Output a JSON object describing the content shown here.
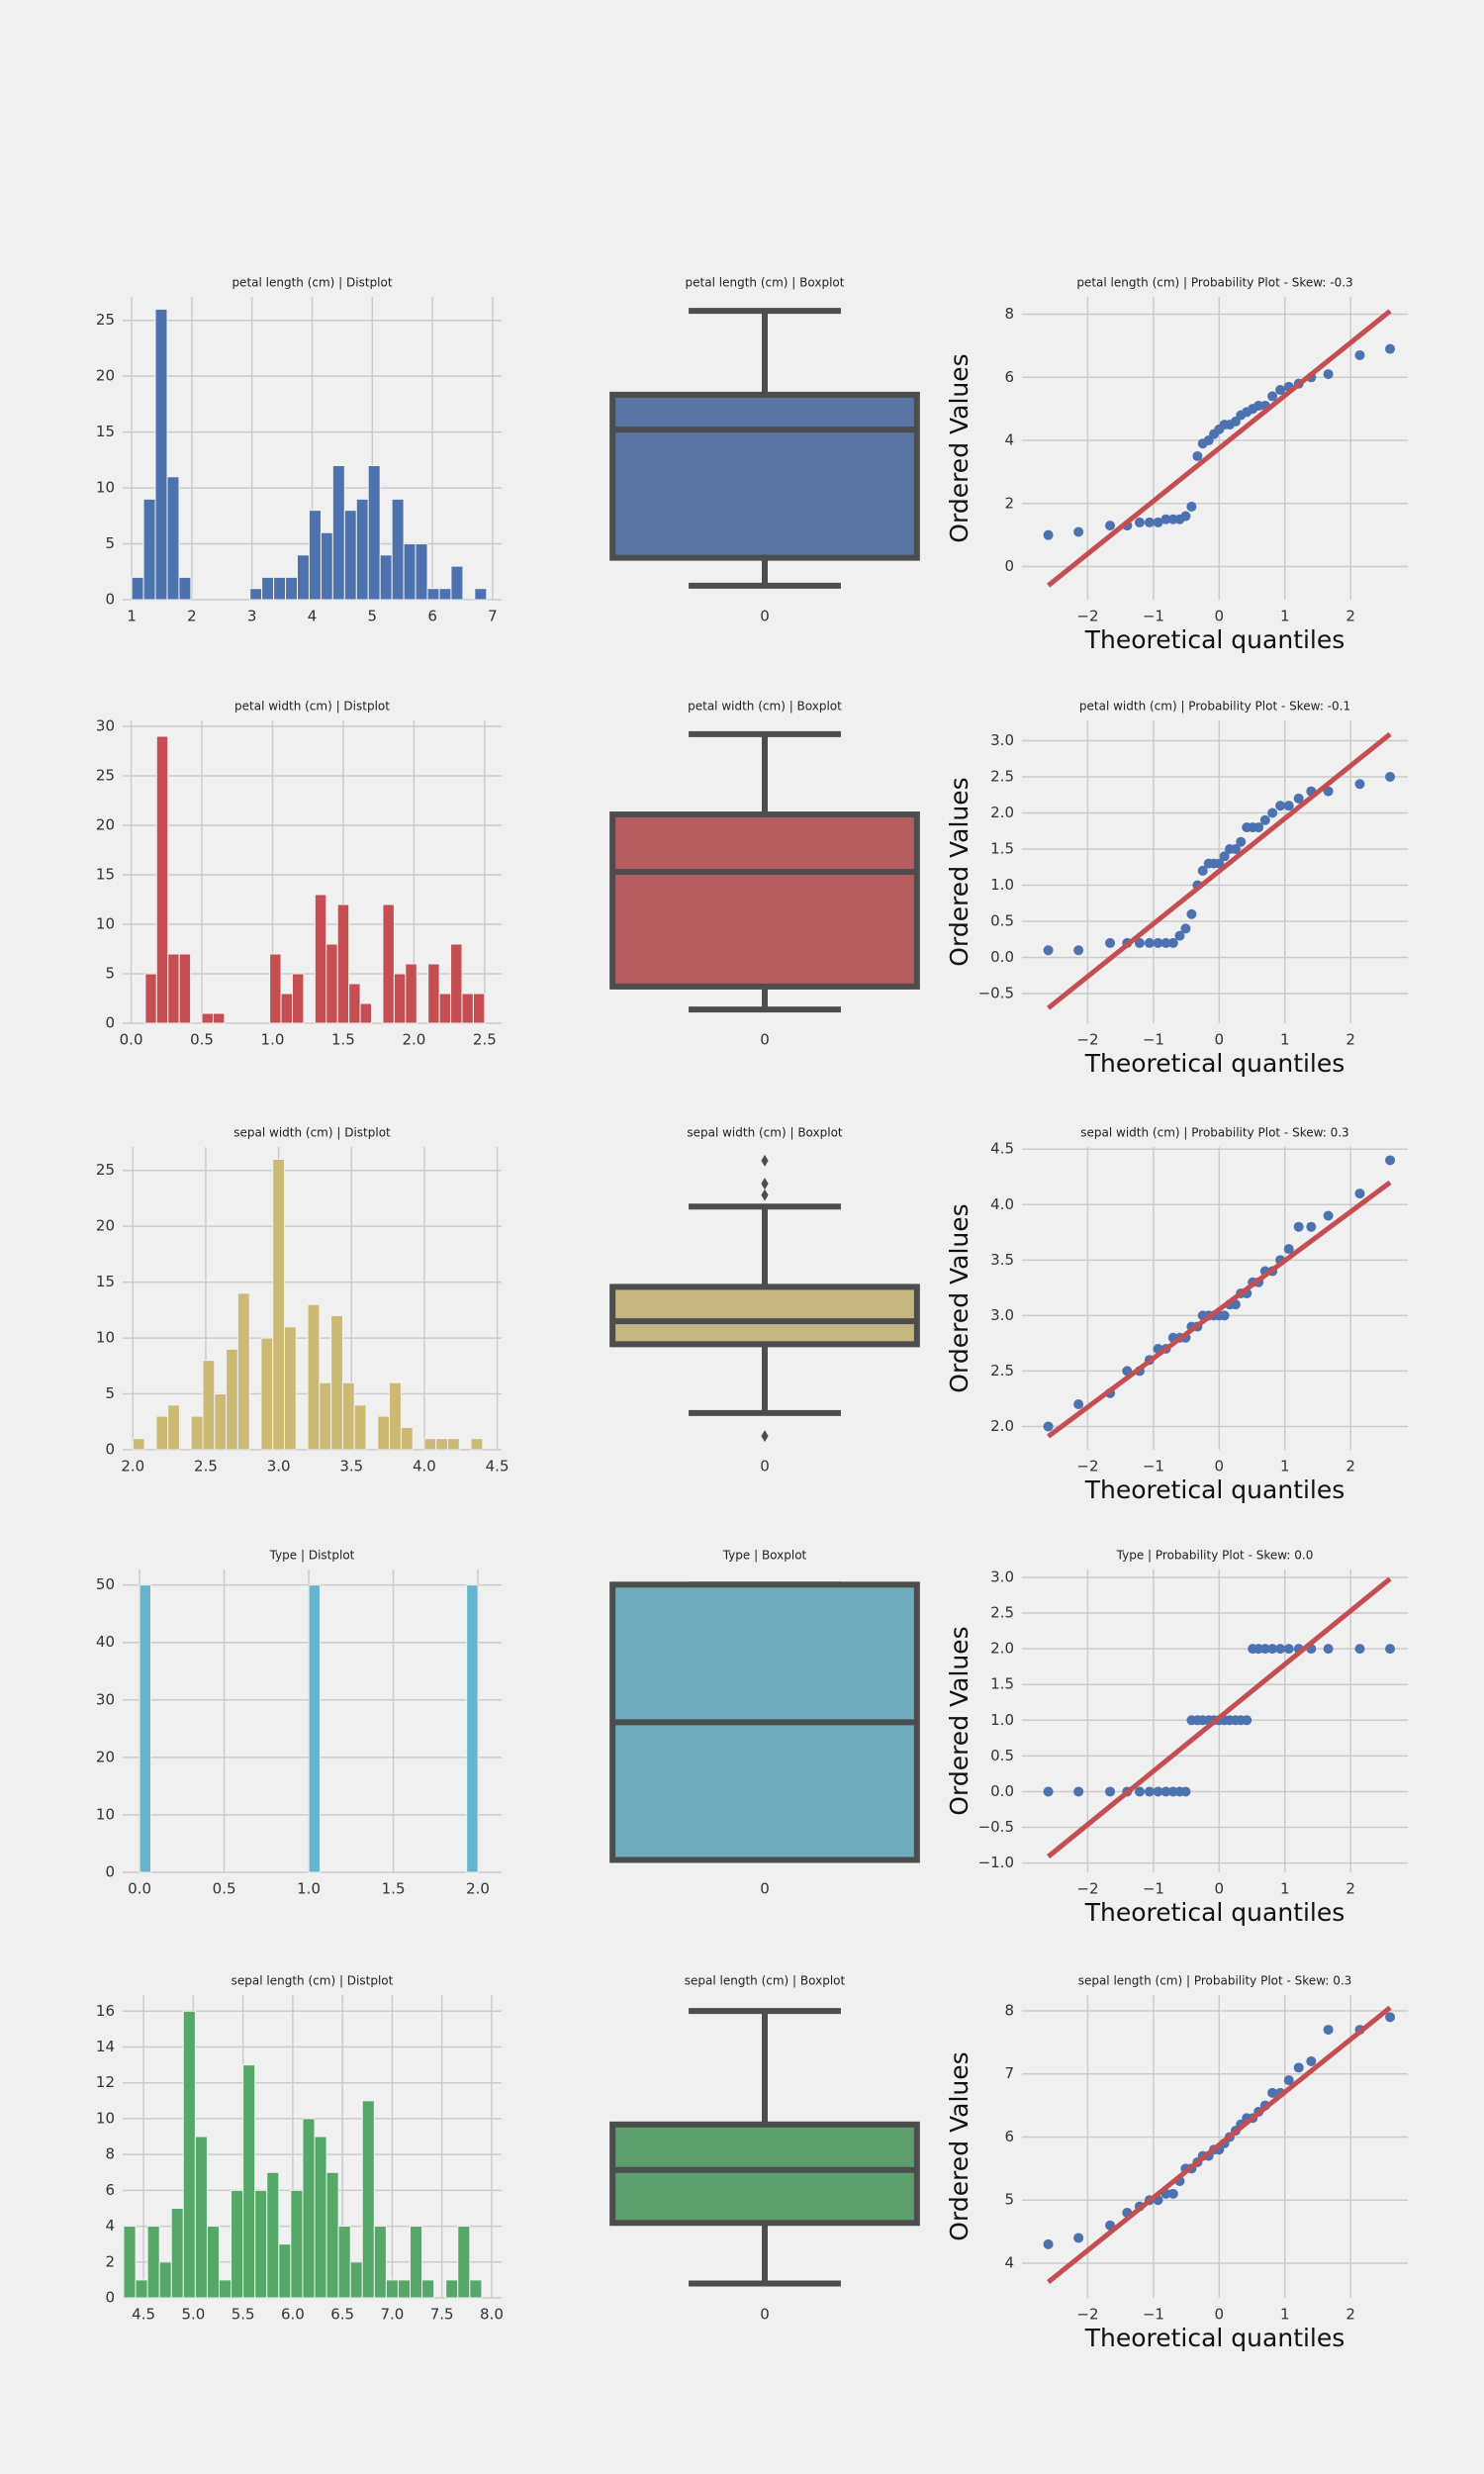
{
  "chart_data": [
    {
      "type": "histogram",
      "title": "petal length (cm) | Distplot",
      "color": "#4c72b0",
      "grid": true,
      "bins": [
        1.0,
        1.197,
        1.393,
        1.59,
        1.787,
        1.983,
        2.18,
        2.377,
        2.573,
        2.77,
        2.967,
        3.163,
        3.36,
        3.557,
        3.753,
        3.95,
        4.147,
        4.343,
        4.54,
        4.737,
        4.933,
        5.13,
        5.327,
        5.523,
        5.72,
        5.917,
        6.113,
        6.31,
        6.507,
        6.703,
        6.9
      ],
      "values": [
        2,
        9,
        26,
        11,
        2,
        0,
        0,
        0,
        0,
        0,
        1,
        2,
        2,
        2,
        4,
        8,
        6,
        12,
        8,
        9,
        12,
        4,
        9,
        5,
        5,
        1,
        1,
        3,
        0,
        1
      ],
      "xlim": [
        0.85,
        7.15
      ],
      "xticks": [
        1,
        2,
        3,
        4,
        5,
        6,
        7
      ],
      "ylim": [
        0,
        27.1
      ],
      "yticks": [
        0,
        5,
        10,
        15,
        20,
        25
      ]
    },
    {
      "type": "box",
      "title": "petal length (cm) | Boxplot",
      "color": "#5875a4",
      "categories": [
        "0"
      ],
      "whisker_low": 1.0,
      "q1": 1.6,
      "median": 4.35,
      "q3": 5.1,
      "whisker_high": 6.9,
      "outliers": [],
      "ylim": [
        0.7,
        7.2
      ]
    },
    {
      "type": "scatter",
      "title": "petal length (cm) | Probability Plot - Skew: -0.3",
      "x_label": "Theoretical quantiles",
      "y_label": "Ordered Values",
      "color": "#4c72b0",
      "fit_color": "#c44e52",
      "grid": true,
      "x": [
        -2.6,
        -2.14,
        -1.66,
        -1.4,
        -1.21,
        -1.06,
        -0.93,
        -0.81,
        -0.7,
        -0.6,
        -0.51,
        -0.42,
        -0.33,
        -0.25,
        -0.16,
        -0.08,
        0,
        0.08,
        0.16,
        0.25,
        0.33,
        0.42,
        0.51,
        0.6,
        0.7,
        0.81,
        0.93,
        1.06,
        1.21,
        1.4,
        1.66,
        2.14,
        2.6
      ],
      "values": [
        1.0,
        1.1,
        1.3,
        1.3,
        1.4,
        1.4,
        1.4,
        1.5,
        1.5,
        1.5,
        1.6,
        1.9,
        3.5,
        3.9,
        4.0,
        4.2,
        4.35,
        4.5,
        4.5,
        4.6,
        4.8,
        4.9,
        5.0,
        5.1,
        5.1,
        5.4,
        5.6,
        5.7,
        5.8,
        6.0,
        6.1,
        6.7,
        6.9
      ],
      "fit_x": [
        -2.6,
        2.6
      ],
      "fit_values": [
        -0.6,
        8.1
      ],
      "xlim": [
        -3.0,
        2.87
      ],
      "xticks": [
        {
          "value": -2,
          "label": "−2"
        },
        {
          "value": -1,
          "label": "−1"
        },
        0,
        1,
        2
      ],
      "ylim": [
        -1.05,
        8.55
      ],
      "yticks": [
        0,
        2,
        4,
        6,
        8
      ]
    },
    {
      "type": "histogram",
      "title": "petal width (cm) | Distplot",
      "color": "#c44e52",
      "grid": true,
      "bins": [
        0.1,
        0.18,
        0.26,
        0.34,
        0.42,
        0.5,
        0.58,
        0.66,
        0.74,
        0.82,
        0.9,
        0.98,
        1.06,
        1.14,
        1.22,
        1.3,
        1.38,
        1.46,
        1.54,
        1.62,
        1.7,
        1.78,
        1.86,
        1.94,
        2.02,
        2.1,
        2.18,
        2.26,
        2.34,
        2.42,
        2.5
      ],
      "values": [
        5,
        29,
        7,
        7,
        0,
        1,
        1,
        0,
        0,
        0,
        0,
        7,
        3,
        5,
        0,
        13,
        8,
        12,
        4,
        2,
        0,
        12,
        5,
        6,
        0,
        6,
        3,
        8,
        3,
        3
      ],
      "xlim": [
        -0.06,
        2.62
      ],
      "xticks": [
        {
          "value": 0,
          "label": "0.0"
        },
        0.5,
        {
          "value": 1,
          "label": "1.0"
        },
        1.5,
        {
          "value": 2,
          "label": "2.0"
        },
        2.5
      ],
      "ylim": [
        0,
        30.6
      ],
      "yticks": [
        0,
        5,
        10,
        15,
        20,
        25,
        30
      ]
    },
    {
      "type": "box",
      "title": "petal width (cm) | Boxplot",
      "color": "#b55d60",
      "categories": [
        "0"
      ],
      "whisker_low": 0.1,
      "q1": 0.3,
      "median": 1.3,
      "q3": 1.8,
      "whisker_high": 2.5,
      "outliers": [],
      "ylim": [
        -0.02,
        2.62
      ]
    },
    {
      "type": "scatter",
      "title": "petal width (cm) | Probability Plot - Skew: -0.1",
      "x_label": "Theoretical quantiles",
      "y_label": "Ordered Values",
      "color": "#4c72b0",
      "fit_color": "#c44e52",
      "grid": true,
      "x": [
        -2.6,
        -2.14,
        -1.66,
        -1.4,
        -1.21,
        -1.06,
        -0.93,
        -0.81,
        -0.7,
        -0.6,
        -0.51,
        -0.42,
        -0.33,
        -0.25,
        -0.16,
        -0.08,
        0,
        0.08,
        0.16,
        0.25,
        0.33,
        0.42,
        0.51,
        0.6,
        0.7,
        0.81,
        0.93,
        1.06,
        1.21,
        1.4,
        1.66,
        2.14,
        2.6
      ],
      "values": [
        0.1,
        0.1,
        0.2,
        0.2,
        0.2,
        0.2,
        0.2,
        0.2,
        0.2,
        0.3,
        0.4,
        0.6,
        1.0,
        1.2,
        1.3,
        1.3,
        1.3,
        1.4,
        1.5,
        1.5,
        1.6,
        1.8,
        1.8,
        1.8,
        1.9,
        2.0,
        2.1,
        2.1,
        2.2,
        2.3,
        2.3,
        2.4,
        2.5
      ],
      "fit_x": [
        -2.6,
        2.6
      ],
      "fit_values": [
        -0.7,
        3.09
      ],
      "xlim": [
        -3.0,
        2.87
      ],
      "xticks": [
        {
          "value": -2,
          "label": "−2"
        },
        {
          "value": -1,
          "label": "−1"
        },
        0,
        1,
        2
      ],
      "ylim": [
        -0.91,
        3.28
      ],
      "yticks": [
        {
          "value": -0.5,
          "label": "−0.5"
        },
        {
          "value": 0,
          "label": "0.0"
        },
        0.5,
        {
          "value": 1,
          "label": "1.0"
        },
        1.5,
        {
          "value": 2,
          "label": "2.0"
        },
        2.5,
        {
          "value": 3,
          "label": "3.0"
        }
      ]
    },
    {
      "type": "histogram",
      "title": "sepal width (cm) | Distplot",
      "color": "#ccb974",
      "grid": true,
      "bins": [
        2.0,
        2.08,
        2.16,
        2.24,
        2.32,
        2.4,
        2.48,
        2.56,
        2.64,
        2.72,
        2.8,
        2.88,
        2.96,
        3.04,
        3.12,
        3.2,
        3.28,
        3.36,
        3.44,
        3.52,
        3.6,
        3.68,
        3.76,
        3.84,
        3.92,
        4.0,
        4.08,
        4.16,
        4.24,
        4.32,
        4.4
      ],
      "values": [
        1,
        0,
        3,
        4,
        0,
        3,
        8,
        5,
        9,
        14,
        0,
        10,
        26,
        11,
        0,
        13,
        6,
        12,
        6,
        4,
        0,
        3,
        6,
        2,
        0,
        1,
        1,
        1,
        0,
        1
      ],
      "xlim": [
        1.93,
        4.53
      ],
      "xticks": [
        {
          "value": 2,
          "label": "2.0"
        },
        2.5,
        {
          "value": 3,
          "label": "3.0"
        },
        3.5,
        {
          "value": 4,
          "label": "4.0"
        },
        4.5
      ],
      "ylim": [
        0,
        27.1
      ],
      "yticks": [
        0,
        5,
        10,
        15,
        20,
        25
      ]
    },
    {
      "type": "box",
      "title": "sepal width (cm) | Boxplot",
      "color": "#c4b67e",
      "categories": [
        "0"
      ],
      "whisker_low": 2.2,
      "q1": 2.8,
      "median": 3.0,
      "q3": 3.3,
      "whisker_high": 4.0,
      "outliers": [
        2.0,
        4.1,
        4.2,
        4.4
      ],
      "ylim": [
        1.88,
        4.52
      ]
    },
    {
      "type": "scatter",
      "title": "sepal width (cm) | Probability Plot - Skew: 0.3",
      "x_label": "Theoretical quantiles",
      "y_label": "Ordered Values",
      "color": "#4c72b0",
      "fit_color": "#c44e52",
      "grid": true,
      "x": [
        -2.6,
        -2.14,
        -1.66,
        -1.4,
        -1.21,
        -1.06,
        -0.93,
        -0.81,
        -0.7,
        -0.6,
        -0.51,
        -0.42,
        -0.33,
        -0.25,
        -0.16,
        -0.08,
        0,
        0.08,
        0.16,
        0.25,
        0.33,
        0.42,
        0.51,
        0.6,
        0.7,
        0.81,
        0.93,
        1.06,
        1.21,
        1.4,
        1.66,
        2.14,
        2.6
      ],
      "values": [
        2.0,
        2.2,
        2.3,
        2.5,
        2.5,
        2.6,
        2.7,
        2.7,
        2.8,
        2.8,
        2.8,
        2.9,
        2.9,
        3.0,
        3.0,
        3.0,
        3.0,
        3.0,
        3.1,
        3.1,
        3.2,
        3.2,
        3.3,
        3.3,
        3.4,
        3.4,
        3.5,
        3.6,
        3.8,
        3.8,
        3.9,
        4.1,
        4.4
      ],
      "fit_x": [
        -2.6,
        2.6
      ],
      "fit_values": [
        1.91,
        4.2
      ],
      "xlim": [
        -3.0,
        2.87
      ],
      "xticks": [
        {
          "value": -2,
          "label": "−2"
        },
        {
          "value": -1,
          "label": "−1"
        },
        0,
        1,
        2
      ],
      "ylim": [
        1.79,
        4.52
      ],
      "yticks": [
        {
          "value": 2,
          "label": "2.0"
        },
        2.5,
        {
          "value": 3,
          "label": "3.0"
        },
        3.5,
        {
          "value": 4,
          "label": "4.0"
        },
        4.5
      ]
    },
    {
      "type": "histogram",
      "title": "Type | Distplot",
      "color": "#64b5cd",
      "grid": true,
      "bins": [
        0,
        0.0667,
        0.1333,
        0.2,
        0.2667,
        0.3333,
        0.4,
        0.4667,
        0.5333,
        0.6,
        0.6667,
        0.7333,
        0.8,
        0.8667,
        0.9333,
        1.0,
        1.0667,
        1.1333,
        1.2,
        1.2667,
        1.3333,
        1.4,
        1.4667,
        1.5333,
        1.6,
        1.6667,
        1.7333,
        1.8,
        1.8667,
        1.9333,
        2.0
      ],
      "values": [
        50,
        0,
        0,
        0,
        0,
        0,
        0,
        0,
        0,
        0,
        0,
        0,
        0,
        0,
        0,
        50,
        0,
        0,
        0,
        0,
        0,
        0,
        0,
        0,
        0,
        0,
        0,
        0,
        0,
        50
      ],
      "xlim": [
        -0.1,
        2.14
      ],
      "xticks": [
        {
          "value": 0,
          "label": "0.0"
        },
        0.5,
        {
          "value": 1,
          "label": "1.0"
        },
        1.5,
        {
          "value": 2,
          "label": "2.0"
        }
      ],
      "ylim": [
        0,
        52.7
      ],
      "yticks": [
        0,
        10,
        20,
        30,
        40,
        50
      ]
    },
    {
      "type": "box",
      "title": "Type | Boxplot",
      "color": "#6eacbe",
      "categories": [
        "0"
      ],
      "whisker_low": 0,
      "q1": 0,
      "median": 1,
      "q3": 2,
      "whisker_high": 2,
      "outliers": [],
      "ylim": [
        -0.09,
        2.11
      ]
    },
    {
      "type": "scatter",
      "title": "Type | Probability Plot - Skew: 0.0",
      "x_label": "Theoretical quantiles",
      "y_label": "Ordered Values",
      "color": "#4c72b0",
      "fit_color": "#c44e52",
      "grid": true,
      "x": [
        -2.6,
        -2.14,
        -1.66,
        -1.4,
        -1.21,
        -1.06,
        -0.93,
        -0.81,
        -0.7,
        -0.6,
        -0.51,
        -0.42,
        -0.33,
        -0.25,
        -0.16,
        -0.08,
        0,
        0.08,
        0.16,
        0.25,
        0.33,
        0.42,
        0.51,
        0.6,
        0.7,
        0.81,
        0.93,
        1.06,
        1.21,
        1.4,
        1.66,
        2.14,
        2.6
      ],
      "values": [
        0,
        0,
        0,
        0,
        0,
        0,
        0,
        0,
        0,
        0,
        0,
        1,
        1,
        1,
        1,
        1,
        1,
        1,
        1,
        1,
        1,
        1,
        2,
        2,
        2,
        2,
        2,
        2,
        2,
        2,
        2,
        2,
        2
      ],
      "fit_x": [
        -2.6,
        2.6
      ],
      "fit_values": [
        -0.91,
        2.98
      ],
      "xlim": [
        -3.0,
        2.87
      ],
      "xticks": [
        {
          "value": -2,
          "label": "−2"
        },
        {
          "value": -1,
          "label": "−1"
        },
        0,
        1,
        2
      ],
      "ylim": [
        -1.13,
        3.11
      ],
      "yticks": [
        {
          "value": -1,
          "label": "−1.0"
        },
        {
          "value": -0.5,
          "label": "−0.5"
        },
        {
          "value": 0,
          "label": "0.0"
        },
        0.5,
        {
          "value": 1,
          "label": "1.0"
        },
        1.5,
        {
          "value": 2,
          "label": "2.0"
        },
        2.5,
        {
          "value": 3,
          "label": "3.0"
        }
      ]
    },
    {
      "type": "histogram",
      "title": "sepal length (cm) | Distplot",
      "color": "#55a868",
      "grid": true,
      "bins": [
        4.3,
        4.42,
        4.54,
        4.66,
        4.78,
        4.9,
        5.02,
        5.14,
        5.26,
        5.38,
        5.5,
        5.62,
        5.74,
        5.86,
        5.98,
        6.1,
        6.22,
        6.34,
        6.46,
        6.58,
        6.7,
        6.82,
        6.94,
        7.06,
        7.18,
        7.3,
        7.42,
        7.54,
        7.66,
        7.78,
        7.9
      ],
      "values": [
        4,
        1,
        4,
        2,
        5,
        16,
        9,
        4,
        1,
        6,
        13,
        6,
        7,
        3,
        6,
        10,
        9,
        7,
        4,
        2,
        11,
        4,
        1,
        1,
        4,
        1,
        0,
        1,
        4,
        1
      ],
      "xlim": [
        4.29,
        8.1
      ],
      "xticks": [
        4.5,
        {
          "value": 5,
          "label": "5.0"
        },
        5.5,
        {
          "value": 6,
          "label": "6.0"
        },
        6.5,
        {
          "value": 7,
          "label": "7.0"
        },
        7.5,
        {
          "value": 8,
          "label": "8.0"
        }
      ],
      "ylim": [
        0,
        16.9
      ],
      "yticks": [
        0,
        2,
        4,
        6,
        8,
        10,
        12,
        14,
        16
      ]
    },
    {
      "type": "box",
      "title": "sepal length (cm) | Boxplot",
      "color": "#5d9e6e",
      "categories": [
        "0"
      ],
      "whisker_low": 4.3,
      "q1": 5.1,
      "median": 5.8,
      "q3": 6.4,
      "whisker_high": 7.9,
      "outliers": [],
      "ylim": [
        4.11,
        8.11
      ]
    },
    {
      "type": "scatter",
      "title": "sepal length (cm) | Probability Plot - Skew: 0.3",
      "x_label": "Theoretical quantiles",
      "y_label": "Ordered Values",
      "color": "#4c72b0",
      "fit_color": "#c44e52",
      "grid": true,
      "x": [
        -2.6,
        -2.14,
        -1.66,
        -1.4,
        -1.21,
        -1.06,
        -0.93,
        -0.81,
        -0.7,
        -0.6,
        -0.51,
        -0.42,
        -0.33,
        -0.25,
        -0.16,
        -0.08,
        0,
        0.08,
        0.16,
        0.25,
        0.33,
        0.42,
        0.51,
        0.6,
        0.7,
        0.81,
        0.93,
        1.06,
        1.21,
        1.4,
        1.66,
        2.14,
        2.6
      ],
      "values": [
        4.3,
        4.4,
        4.6,
        4.8,
        4.9,
        5.0,
        5.0,
        5.1,
        5.1,
        5.3,
        5.5,
        5.5,
        5.6,
        5.7,
        5.7,
        5.8,
        5.8,
        5.9,
        6.0,
        6.1,
        6.2,
        6.3,
        6.3,
        6.4,
        6.5,
        6.7,
        6.7,
        6.9,
        7.1,
        7.2,
        7.7,
        7.7,
        7.9
      ],
      "fit_x": [
        -2.6,
        2.6
      ],
      "fit_values": [
        3.7,
        8.05
      ],
      "xlim": [
        -3.0,
        2.87
      ],
      "xticks": [
        {
          "value": -2,
          "label": "−2"
        },
        {
          "value": -1,
          "label": "−1"
        },
        0,
        1,
        2
      ],
      "ylim": [
        3.45,
        8.25
      ],
      "yticks": [
        4,
        5,
        6,
        7,
        8
      ]
    }
  ]
}
